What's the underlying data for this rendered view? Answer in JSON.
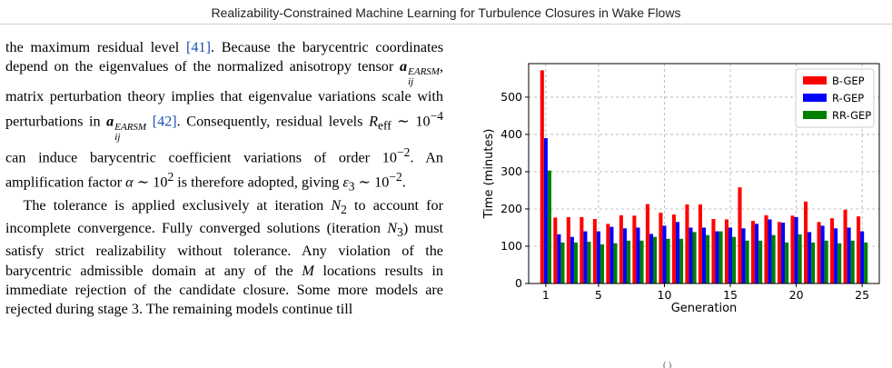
{
  "page_header": "Realizability-Constrained Machine Learning for Turbulence Closures in Wake Flows",
  "body_text": {
    "para1": {
      "s1": "the maximum residual level ",
      "cite1": "[41]",
      "s2": ". Because the barycentric coordinates depend on the eigenvalues of the normalized anisotropy tensor ",
      "tensor_symbol": "a",
      "tensor_sup": "EARSM",
      "tensor_sub": "ij",
      "s3": ", matrix perturbation theory implies that eigenvalue variations scale with perturbations in ",
      "cite2": "[42]",
      "s4": ". Consequently, residual levels ",
      "r_eff": "R",
      "r_eff_sub": "eff",
      "s5": " ∼ 10",
      "exp1": "−4",
      "s6": " can induce barycentric coefficient variations of order 10",
      "exp2": "−2",
      "s7": ". An amplification factor ",
      "alpha": "α",
      "s8": " ∼ 10",
      "exp3": "2",
      "s9": " is therefore adopted, giving ",
      "eps": "ε",
      "eps_sub": "3",
      "s10": " ∼ 10",
      "exp4": "−2",
      "s11": "."
    },
    "para2": {
      "s1": "The tolerance is applied exclusively at iteration ",
      "n": "N",
      "n2_sub": "2",
      "s2": " to account for incomplete convergence. Fully converged solutions (iteration ",
      "n3_sub": "3",
      "s3": ") must satisfy strict realizability without tolerance. Any violation of the barycentric admissible domain at any of the ",
      "m": "M",
      "s4": " locations results in immediate rejection of the candidate closure. Some more models are rejected during stage 3. The remaining models continue till"
    }
  },
  "figure_caption_fragment": "(          )",
  "chart_data": {
    "type": "bar",
    "title": "",
    "xlabel": "Generation",
    "ylabel": "Time (minutes)",
    "xticks": [
      1,
      5,
      10,
      15,
      20,
      25
    ],
    "yticks": [
      0,
      100,
      200,
      300,
      400,
      500
    ],
    "ylim": [
      0,
      590
    ],
    "xlim": [
      -0.3,
      26.3
    ],
    "grid": true,
    "legend_position": "top-right",
    "categories": [
      1,
      2,
      3,
      4,
      5,
      6,
      7,
      8,
      9,
      10,
      11,
      12,
      13,
      14,
      15,
      16,
      17,
      18,
      19,
      20,
      21,
      22,
      23,
      24,
      25
    ],
    "series": [
      {
        "name": "B-GEP",
        "color": "#ff0000",
        "values": [
          572,
          177,
          178,
          178,
          173,
          160,
          183,
          182,
          213,
          190,
          185,
          212,
          212,
          173,
          172,
          258,
          168,
          183,
          165,
          182,
          220,
          165,
          175,
          198,
          180
        ]
      },
      {
        "name": "R-GEP",
        "color": "#0000ff",
        "values": [
          390,
          132,
          125,
          140,
          140,
          152,
          148,
          150,
          133,
          155,
          165,
          150,
          150,
          140,
          150,
          148,
          160,
          172,
          163,
          178,
          138,
          155,
          148,
          150,
          140
        ]
      },
      {
        "name": "RR-GEP",
        "color": "#008000",
        "values": [
          303,
          110,
          110,
          112,
          105,
          108,
          115,
          115,
          125,
          120,
          120,
          138,
          130,
          140,
          125,
          115,
          115,
          130,
          110,
          132,
          110,
          115,
          108,
          115,
          110
        ]
      }
    ]
  }
}
